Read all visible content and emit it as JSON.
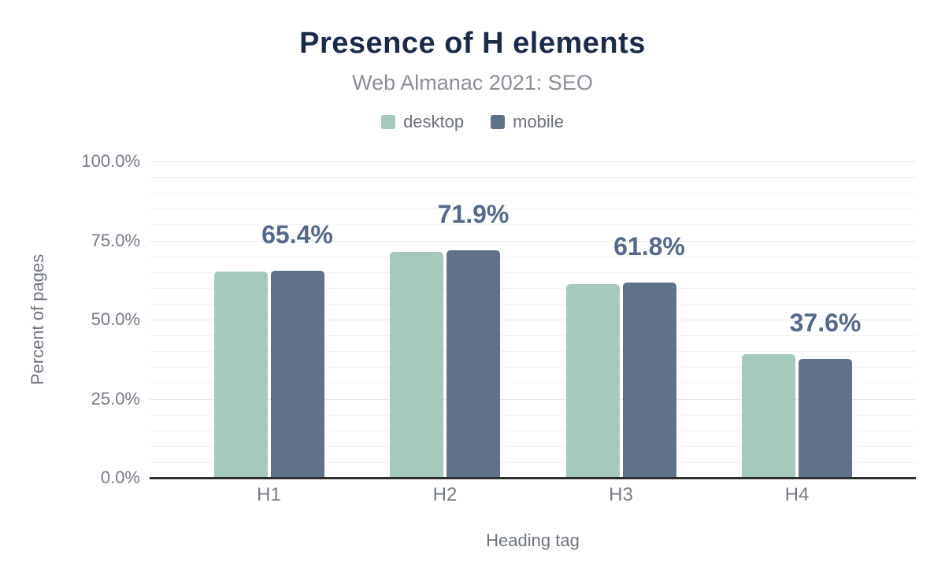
{
  "chart_data": {
    "type": "bar",
    "title": "Presence of H elements",
    "subtitle": "Web Almanac 2021: SEO",
    "xlabel": "Heading tag",
    "ylabel": "Percent of pages",
    "categories": [
      "H1",
      "H2",
      "H3",
      "H4"
    ],
    "series": [
      {
        "name": "desktop",
        "color": "#a5cabb",
        "values": [
          65.1,
          71.5,
          61.2,
          39.1
        ]
      },
      {
        "name": "mobile",
        "color": "#60718a",
        "values": [
          65.4,
          71.9,
          61.8,
          37.6
        ]
      }
    ],
    "value_labels": {
      "for_series": "mobile",
      "texts": [
        "65.4%",
        "71.9%",
        "61.8%",
        "37.6%"
      ],
      "color": "#55688e"
    },
    "y_axis": {
      "min": 0,
      "max": 100,
      "minor_grid_step": 5,
      "major_ticks": [
        {
          "value": 0,
          "label": "0.0%"
        },
        {
          "value": 25,
          "label": "25.0%"
        },
        {
          "value": 50,
          "label": "50.0%"
        },
        {
          "value": 75,
          "label": "75.0%"
        },
        {
          "value": 100,
          "label": "100.0%"
        }
      ]
    },
    "legend_position": "top",
    "grid": true,
    "colors": {
      "title": "#1a2b4a",
      "subtitle": "#8a8e98",
      "legend_text": "#6b7079",
      "axis_text": "#757b85",
      "axis_title_text": "#6e747e",
      "axis_line": "#2e2e2e",
      "background": "#ffffff"
    }
  }
}
